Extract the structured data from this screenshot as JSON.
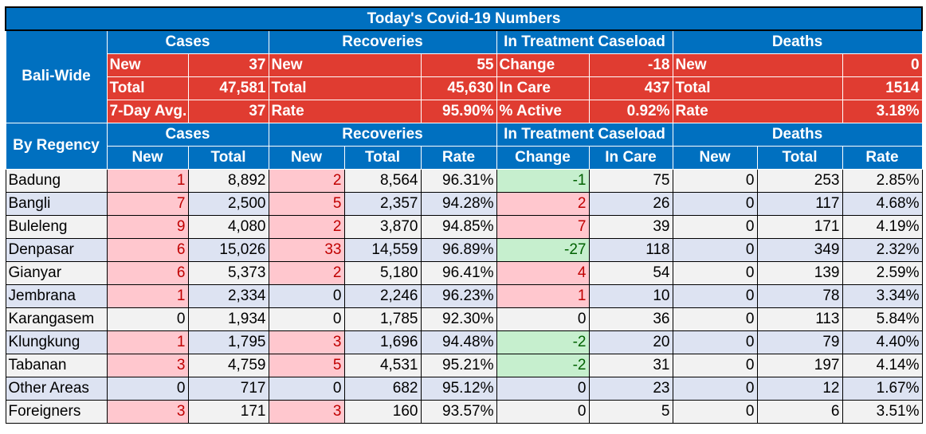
{
  "title": "Today's Covid-19 Numbers",
  "bali": {
    "label": "Bali-Wide",
    "groups": [
      "Cases",
      "Recoveries",
      "In Treatment Caseload",
      "Deaths"
    ],
    "rows": [
      [
        "New",
        "37",
        "New",
        "55",
        "Change",
        "-18",
        "New",
        "0"
      ],
      [
        "Total",
        "47,581",
        "Total",
        "45,630",
        "In Care",
        "437",
        "Total",
        "1514"
      ],
      [
        "7-Day Avg.",
        "37",
        "Rate",
        "95.90%",
        "% Active",
        "0.92%",
        "Rate",
        "3.18%"
      ]
    ]
  },
  "regency": {
    "label": "By Regency",
    "groups": [
      "Cases",
      "Recoveries",
      "In Treatment Caseload",
      "Deaths"
    ],
    "columns": [
      "New",
      "Total",
      "New",
      "Total",
      "Rate",
      "Change",
      "In Care",
      "New",
      "Total",
      "Rate"
    ],
    "rows": [
      [
        "Badung",
        "1",
        "8,892",
        "2",
        "8,564",
        "96.31%",
        "-1",
        "75",
        "0",
        "253",
        "2.85%"
      ],
      [
        "Bangli",
        "7",
        "2,500",
        "5",
        "2,357",
        "94.28%",
        "2",
        "26",
        "0",
        "117",
        "4.68%"
      ],
      [
        "Buleleng",
        "9",
        "4,080",
        "2",
        "3,870",
        "94.85%",
        "7",
        "39",
        "0",
        "171",
        "4.19%"
      ],
      [
        "Denpasar",
        "6",
        "15,026",
        "33",
        "14,559",
        "96.89%",
        "-27",
        "118",
        "0",
        "349",
        "2.32%"
      ],
      [
        "Gianyar",
        "6",
        "5,373",
        "2",
        "5,180",
        "96.41%",
        "4",
        "54",
        "0",
        "139",
        "2.59%"
      ],
      [
        "Jembrana",
        "1",
        "2,334",
        "0",
        "2,246",
        "96.23%",
        "1",
        "10",
        "0",
        "78",
        "3.34%"
      ],
      [
        "Karangasem",
        "0",
        "1,934",
        "0",
        "1,785",
        "92.30%",
        "0",
        "36",
        "0",
        "113",
        "5.84%"
      ],
      [
        "Klungkung",
        "1",
        "1,795",
        "3",
        "1,696",
        "94.48%",
        "-2",
        "20",
        "0",
        "79",
        "4.40%"
      ],
      [
        "Tabanan",
        "3",
        "4,759",
        "5",
        "4,531",
        "95.21%",
        "-2",
        "31",
        "0",
        "197",
        "4.14%"
      ],
      [
        "Other Areas",
        "0",
        "717",
        "0",
        "682",
        "95.12%",
        "0",
        "23",
        "0",
        "12",
        "1.67%"
      ],
      [
        "Foreigners",
        "3",
        "171",
        "3",
        "160",
        "93.57%",
        "0",
        "5",
        "0",
        "6",
        "3.51%"
      ]
    ]
  },
  "colors": {
    "header_blue": "#0070c0",
    "summary_red": "#e03c31",
    "increase_fill": "#ffc7ce",
    "increase_text": "#c00000",
    "decrease_fill": "#c6efce",
    "decrease_text": "#006100",
    "row_light": "#f2f2f2",
    "row_blue": "#dde3f2"
  }
}
